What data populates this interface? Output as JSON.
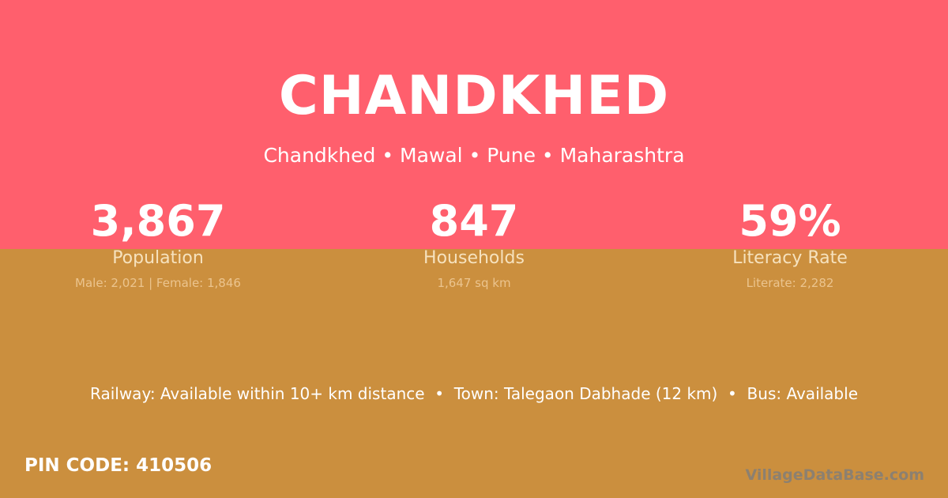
{
  "header": {
    "title": "CHANDKHED",
    "subtitle": "Chandkhed • Mawal • Pune • Maharashtra"
  },
  "stats": [
    {
      "value": "3,867",
      "label": "Population",
      "detail": "Male: 2,021 | Female: 1,846"
    },
    {
      "value": "847",
      "label": "Households",
      "detail": "1,647 sq km"
    },
    {
      "value": "59%",
      "label": "Literacy Rate",
      "detail": "Literate: 2,282"
    }
  ],
  "access": "Railway: Available within 10+ km distance  •  Town: Talegaon Dabhade (12 km)  •  Bus: Available",
  "pin": "PIN CODE: 410506",
  "brand": "VillageDataBase.com",
  "colors": {
    "top": "#FF5F6D",
    "bottom": "#CB8F3E"
  }
}
